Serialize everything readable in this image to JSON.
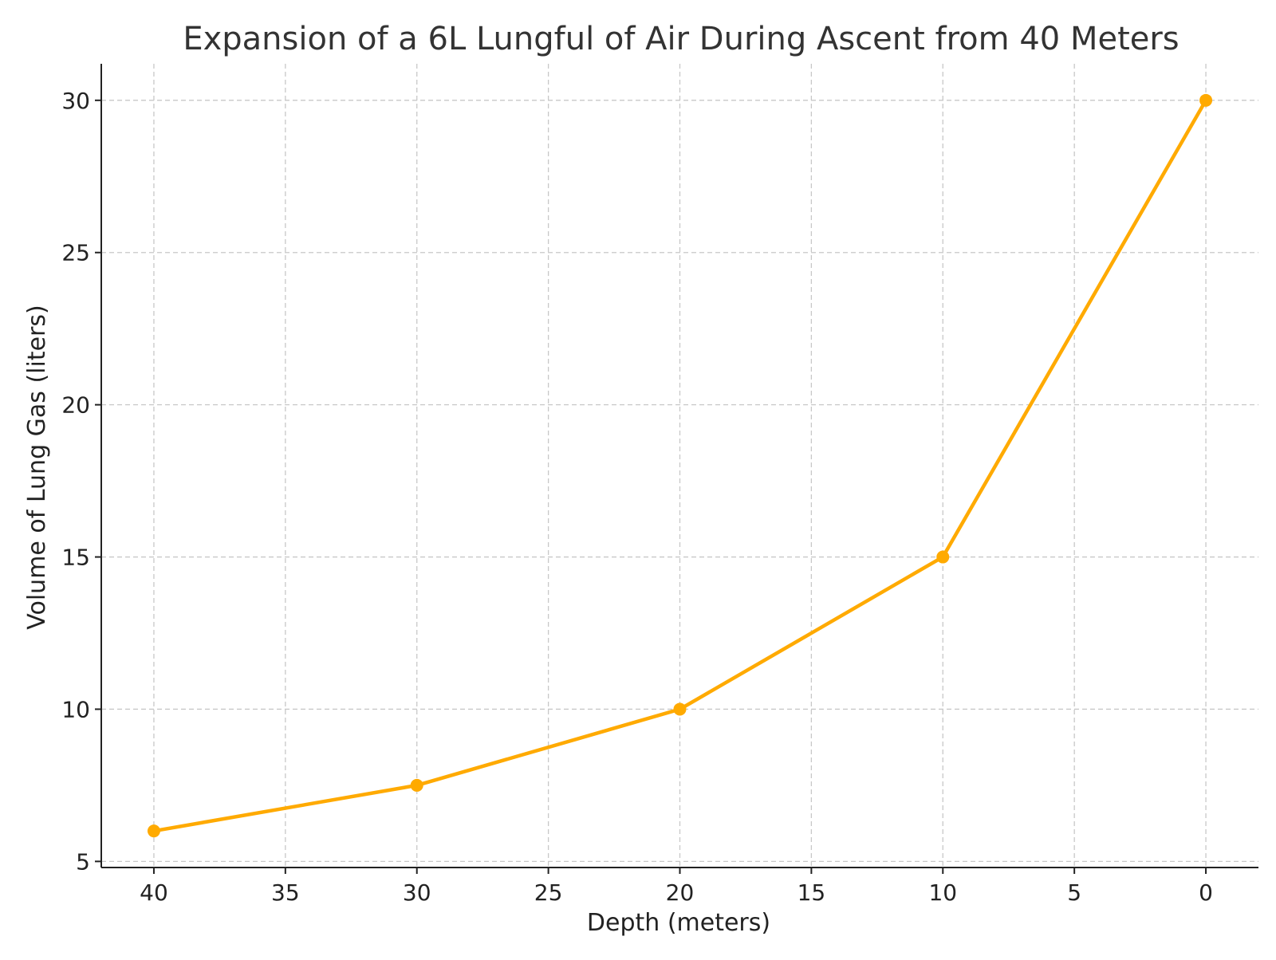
{
  "chart_data": {
    "type": "line",
    "title": "Expansion of a 6L Lungful of Air During Ascent from 40 Meters",
    "xlabel": "Depth (meters)",
    "ylabel": "Volume of Lung Gas (liters)",
    "x_inverted": true,
    "xlim": [
      42,
      -2
    ],
    "ylim": [
      4.8,
      31.2
    ],
    "xticks": [
      40,
      35,
      30,
      25,
      20,
      15,
      10,
      5,
      0
    ],
    "yticks": [
      5,
      10,
      15,
      20,
      25,
      30
    ],
    "grid": true,
    "grid_style": "dashed",
    "legend": "none",
    "series": [
      {
        "color": "#FFAA00",
        "marker": "circle",
        "points": [
          {
            "x": 40,
            "y": 6
          },
          {
            "x": 30,
            "y": 7.5
          },
          {
            "x": 20,
            "y": 10
          },
          {
            "x": 10,
            "y": 15
          },
          {
            "x": 0,
            "y": 30
          }
        ]
      }
    ]
  }
}
